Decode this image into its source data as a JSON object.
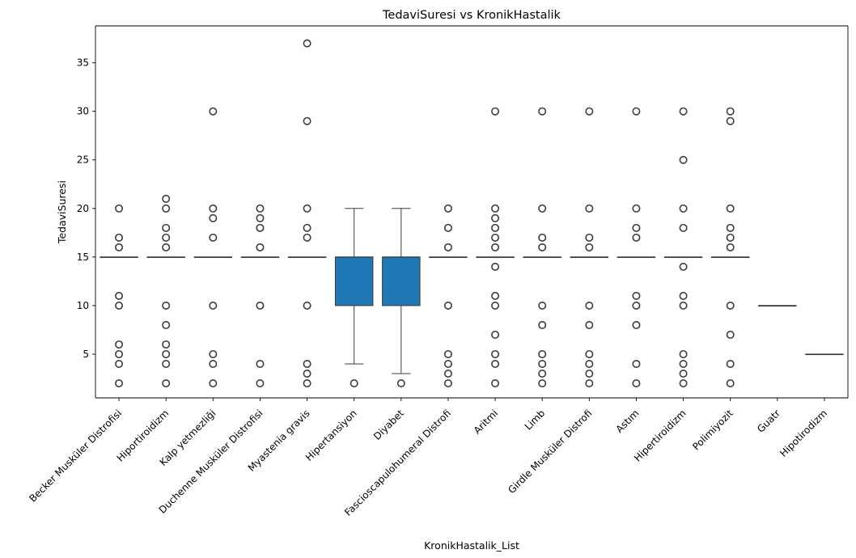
{
  "chart_data": {
    "type": "box",
    "title": "TedaviSuresi vs KronikHastalik",
    "xlabel": "KronikHastalik_List",
    "ylabel": "TedaviSuresi",
    "ylim": [
      0.5,
      38.8
    ],
    "yticks": [
      5,
      10,
      15,
      20,
      25,
      30,
      35
    ],
    "grid": false,
    "box_color": "#1f77b4",
    "outlier_color": "#3d3d3d",
    "categories": [
      "Becker Musküler Distrofisi",
      "Hiportiroidizm",
      "Kalp yetmezliği",
      "Duchenne Musküler Distrofisi",
      "Myastenia gravis",
      "Hipertansiyon",
      "Diyabet",
      "Fascioscapulohumeral Distrofi",
      "Aritmi",
      "Limb",
      "Girdle Musküler Distrofi",
      "Astım",
      "Hipertiroidizm",
      "Polimiyozit",
      "Guatr",
      "Hipotirodizm"
    ],
    "boxes": [
      {
        "q1": 15,
        "median": 15,
        "q3": 15,
        "whisker_low": 15,
        "whisker_high": 15,
        "outliers": [
          2,
          4,
          5,
          6,
          10,
          11,
          16,
          17,
          20
        ]
      },
      {
        "q1": 15,
        "median": 15,
        "q3": 15,
        "whisker_low": 15,
        "whisker_high": 15,
        "outliers": [
          2,
          4,
          5,
          6,
          8,
          10,
          16,
          17,
          18,
          20,
          21
        ]
      },
      {
        "q1": 15,
        "median": 15,
        "q3": 15,
        "whisker_low": 15,
        "whisker_high": 15,
        "outliers": [
          2,
          4,
          5,
          10,
          17,
          19,
          20,
          30
        ]
      },
      {
        "q1": 15,
        "median": 15,
        "q3": 15,
        "whisker_low": 15,
        "whisker_high": 15,
        "outliers": [
          2,
          4,
          10,
          16,
          18,
          19,
          20
        ]
      },
      {
        "q1": 15,
        "median": 15,
        "q3": 15,
        "whisker_low": 15,
        "whisker_high": 15,
        "outliers": [
          2,
          3,
          4,
          10,
          17,
          18,
          20,
          29,
          37
        ]
      },
      {
        "q1": 10,
        "median": 15,
        "q3": 15,
        "whisker_low": 4,
        "whisker_high": 20,
        "outliers": [
          2
        ]
      },
      {
        "q1": 10,
        "median": 15,
        "q3": 15,
        "whisker_low": 3,
        "whisker_high": 20,
        "outliers": [
          2
        ]
      },
      {
        "q1": 15,
        "median": 15,
        "q3": 15,
        "whisker_low": 15,
        "whisker_high": 15,
        "outliers": [
          2,
          3,
          4,
          5,
          10,
          16,
          18,
          20
        ]
      },
      {
        "q1": 15,
        "median": 15,
        "q3": 15,
        "whisker_low": 15,
        "whisker_high": 15,
        "outliers": [
          2,
          4,
          5,
          7,
          10,
          11,
          14,
          16,
          17,
          18,
          19,
          20,
          30
        ]
      },
      {
        "q1": 15,
        "median": 15,
        "q3": 15,
        "whisker_low": 15,
        "whisker_high": 15,
        "outliers": [
          2,
          3,
          4,
          5,
          8,
          10,
          16,
          17,
          20,
          30
        ]
      },
      {
        "q1": 15,
        "median": 15,
        "q3": 15,
        "whisker_low": 15,
        "whisker_high": 15,
        "outliers": [
          2,
          3,
          4,
          5,
          8,
          10,
          16,
          17,
          20,
          30
        ]
      },
      {
        "q1": 15,
        "median": 15,
        "q3": 15,
        "whisker_low": 15,
        "whisker_high": 15,
        "outliers": [
          2,
          4,
          8,
          10,
          11,
          17,
          18,
          20,
          30
        ]
      },
      {
        "q1": 15,
        "median": 15,
        "q3": 15,
        "whisker_low": 15,
        "whisker_high": 15,
        "outliers": [
          2,
          3,
          4,
          5,
          10,
          11,
          14,
          18,
          20,
          25,
          30
        ]
      },
      {
        "q1": 15,
        "median": 15,
        "q3": 15,
        "whisker_low": 15,
        "whisker_high": 15,
        "outliers": [
          2,
          4,
          7,
          10,
          16,
          17,
          18,
          20,
          29,
          30
        ]
      },
      {
        "q1": 10,
        "median": 10,
        "q3": 10,
        "whisker_low": 10,
        "whisker_high": 10,
        "outliers": []
      },
      {
        "q1": 5,
        "median": 5,
        "q3": 5,
        "whisker_low": 5,
        "whisker_high": 5,
        "outliers": []
      }
    ]
  }
}
